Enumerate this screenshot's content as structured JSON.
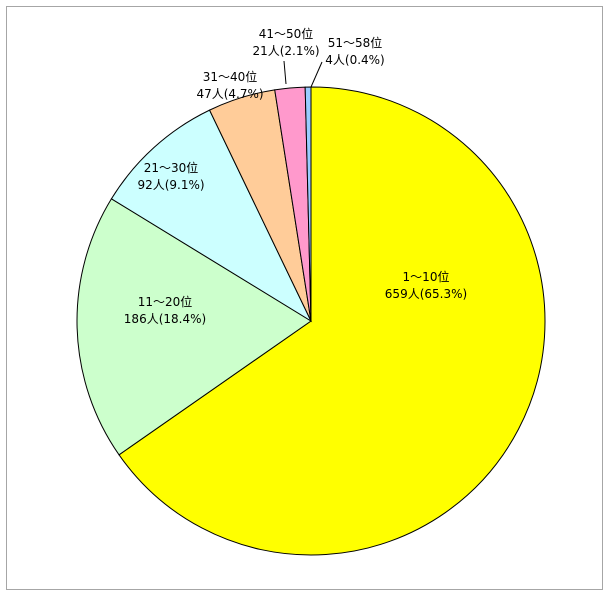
{
  "chart_data": {
    "type": "pie",
    "slices": [
      {
        "label": "1～10位",
        "count_label": "659人(65.3%)",
        "value": 659,
        "percent": 65.3,
        "color": "#FFFF00"
      },
      {
        "label": "11～20位",
        "count_label": "186人(18.4%)",
        "value": 186,
        "percent": 18.4,
        "color": "#CCFFCC"
      },
      {
        "label": "21～30位",
        "count_label": "92人(9.1%)",
        "value": 92,
        "percent": 9.1,
        "color": "#CCFFFF"
      },
      {
        "label": "31～40位",
        "count_label": "47人(4.7%)",
        "value": 47,
        "percent": 4.7,
        "color": "#FFCC99"
      },
      {
        "label": "41～50位",
        "count_label": "21人(2.1%)",
        "value": 21,
        "percent": 2.1,
        "color": "#FF99CC"
      },
      {
        "label": "51～58位",
        "count_label": "4人(0.4%)",
        "value": 4,
        "percent": 0.4,
        "color": "#99CCFF"
      }
    ],
    "start": "12 o'clock",
    "direction": "clockwise",
    "legend": "none",
    "border_color": "#000000"
  }
}
